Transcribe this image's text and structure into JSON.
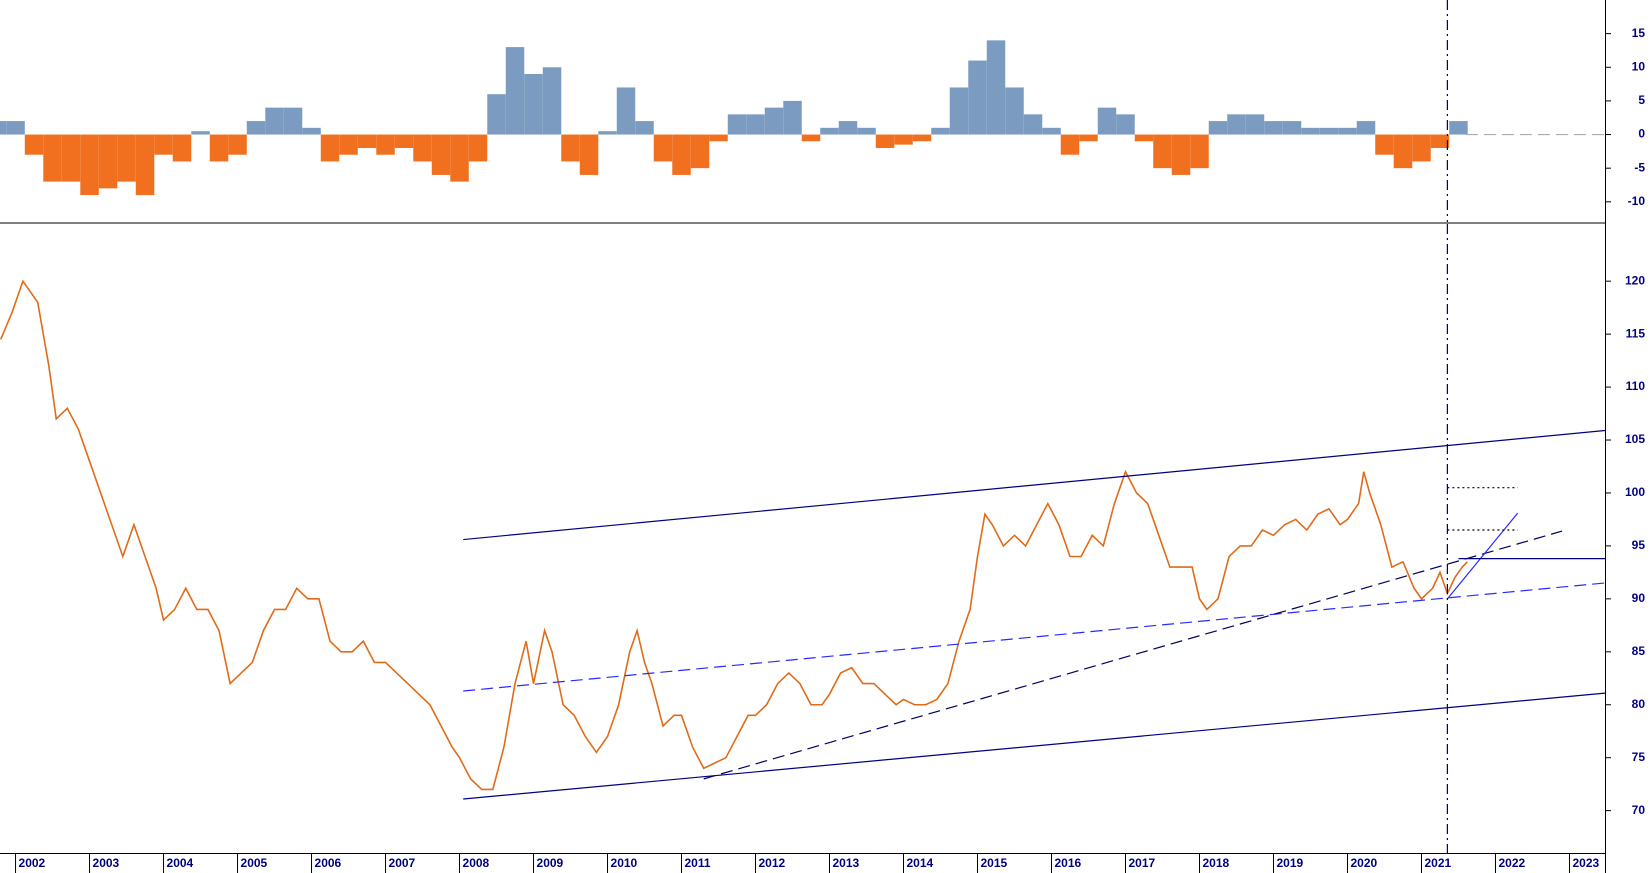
{
  "chart_data": [
    {
      "type": "bar",
      "x": [
        2001.75,
        2002,
        2002.25,
        2002.5,
        2002.75,
        2003,
        2003.25,
        2003.5,
        2003.75,
        2004,
        2004.25,
        2004.5,
        2004.75,
        2005,
        2005.25,
        2005.5,
        2005.75,
        2006,
        2006.25,
        2006.5,
        2006.75,
        2007,
        2007.25,
        2007.5,
        2007.75,
        2008,
        2008.25,
        2008.5,
        2008.75,
        2009,
        2009.25,
        2009.5,
        2009.75,
        2010,
        2010.25,
        2010.5,
        2010.75,
        2011,
        2011.25,
        2011.5,
        2011.75,
        2012,
        2012.25,
        2012.5,
        2012.75,
        2013,
        2013.25,
        2013.5,
        2013.75,
        2014,
        2014.25,
        2014.5,
        2014.75,
        2015,
        2015.25,
        2015.5,
        2015.75,
        2016,
        2016.25,
        2016.5,
        2016.75,
        2017,
        2017.25,
        2017.5,
        2017.75,
        2018,
        2018.25,
        2018.5,
        2018.75,
        2019,
        2019.25,
        2019.5,
        2019.75,
        2020,
        2020.25,
        2020.5,
        2020.75,
        2021,
        2021.25,
        2021.5
      ],
      "values": [
        2,
        2,
        -3,
        -7,
        -7,
        -9,
        -8,
        -7,
        -9,
        -3,
        -4,
        0.5,
        -4,
        -3,
        2,
        4,
        4,
        1,
        -4,
        -3,
        -2,
        -3,
        -2,
        -4,
        -6,
        -7,
        -4,
        6,
        13,
        9,
        10,
        -4,
        -6,
        0.5,
        7,
        2,
        -4,
        -6,
        -5,
        -1,
        3,
        3,
        4,
        5,
        -1,
        1,
        2,
        1,
        -2,
        -1.5,
        -1,
        1,
        7,
        11,
        14,
        7,
        3,
        1,
        -3,
        -1,
        4,
        3,
        -1,
        -5,
        -6,
        -5,
        2,
        3,
        3,
        2,
        2,
        1,
        1,
        1,
        2,
        -3,
        -5,
        -4,
        -2,
        2
      ],
      "positive_color": "#7b9cc0",
      "negative_color": "#f07020",
      "xlim": [
        2001.79,
        2023.48
      ],
      "ylim": [
        20,
        -13
      ],
      "yticks": [
        -10,
        -5,
        0,
        5,
        10,
        15
      ],
      "lines": [
        {
          "points": [
            [
              2021.6,
              0
            ],
            [
              2023.48,
              0
            ]
          ],
          "color": "#aaaaaa",
          "dash": "dashed"
        },
        {
          "points": [
            [
              2021.35,
              20
            ],
            [
              2021.35,
              -13
            ]
          ],
          "color": "#000060",
          "dash": "dashdot"
        }
      ]
    },
    {
      "type": "line",
      "x": [
        2001.8,
        2001.95,
        2002.1,
        2002.3,
        2002.45,
        2002.55,
        2002.7,
        2002.85,
        2003.0,
        2003.15,
        2003.3,
        2003.45,
        2003.6,
        2003.75,
        2003.9,
        2004.0,
        2004.15,
        2004.3,
        2004.45,
        2004.6,
        2004.75,
        2004.9,
        2005.05,
        2005.2,
        2005.35,
        2005.5,
        2005.65,
        2005.8,
        2005.95,
        2006.1,
        2006.25,
        2006.4,
        2006.55,
        2006.7,
        2006.85,
        2007.0,
        2007.15,
        2007.3,
        2007.45,
        2007.6,
        2007.75,
        2007.9,
        2008.0,
        2008.15,
        2008.3,
        2008.45,
        2008.6,
        2008.75,
        2008.9,
        2009.0,
        2009.15,
        2009.25,
        2009.4,
        2009.55,
        2009.7,
        2009.85,
        2010.0,
        2010.15,
        2010.3,
        2010.4,
        2010.5,
        2010.6,
        2010.75,
        2010.9,
        2011.0,
        2011.15,
        2011.3,
        2011.45,
        2011.6,
        2011.75,
        2011.9,
        2012.0,
        2012.15,
        2012.3,
        2012.45,
        2012.6,
        2012.75,
        2012.9,
        2013.0,
        2013.15,
        2013.3,
        2013.45,
        2013.6,
        2013.75,
        2013.9,
        2014.0,
        2014.15,
        2014.3,
        2014.45,
        2014.6,
        2014.75,
        2014.9,
        2015.0,
        2015.1,
        2015.2,
        2015.35,
        2015.5,
        2015.65,
        2015.8,
        2015.95,
        2016.1,
        2016.25,
        2016.4,
        2016.55,
        2016.7,
        2016.85,
        2017.0,
        2017.15,
        2017.3,
        2017.45,
        2017.6,
        2017.75,
        2017.9,
        2018.0,
        2018.1,
        2018.25,
        2018.4,
        2018.55,
        2018.7,
        2018.85,
        2019.0,
        2019.15,
        2019.3,
        2019.45,
        2019.6,
        2019.75,
        2019.9,
        2020.0,
        2020.15,
        2020.22,
        2020.3,
        2020.45,
        2020.6,
        2020.75,
        2020.9,
        2021.0,
        2021.15,
        2021.25,
        2021.35,
        2021.45,
        2021.55,
        2021.62
      ],
      "values": [
        114.5,
        117,
        120,
        118,
        112,
        107,
        108,
        106,
        103,
        100,
        97,
        94,
        97,
        94,
        91,
        88,
        89,
        91,
        89,
        89,
        87,
        82,
        83,
        84,
        87,
        89,
        89,
        91,
        90,
        90,
        86,
        85,
        85,
        86,
        84,
        84,
        83,
        82,
        81,
        80,
        78,
        76,
        75,
        73,
        72,
        72,
        76,
        82,
        86,
        82,
        87,
        85,
        80,
        79,
        77,
        75.5,
        77,
        80,
        85,
        87,
        84,
        82,
        78,
        79,
        79,
        76,
        74,
        74.5,
        75,
        77,
        79,
        79,
        80,
        82,
        83,
        82,
        80,
        80,
        81,
        83,
        83.5,
        82,
        82,
        81,
        80,
        80.5,
        80,
        80,
        80.5,
        82,
        86,
        89,
        94,
        98,
        97,
        95,
        96,
        95,
        97,
        99,
        97,
        94,
        94,
        96,
        95,
        99,
        102,
        100,
        99,
        96,
        93,
        93,
        93,
        90,
        89,
        90,
        94,
        95,
        95,
        96.5,
        96,
        97,
        97.5,
        96.5,
        98,
        98.5,
        97,
        97.5,
        99,
        102,
        100,
        97,
        93,
        93.5,
        91,
        90,
        91,
        92.5,
        90.5,
        92,
        93,
        93.5
      ],
      "color": "#e06b1a",
      "xlim": [
        2001.79,
        2023.48
      ],
      "ylim": [
        125.4,
        66
      ],
      "xticks": [
        2002,
        2003,
        2004,
        2005,
        2006,
        2007,
        2008,
        2009,
        2010,
        2011,
        2012,
        2013,
        2014,
        2015,
        2016,
        2017,
        2018,
        2019,
        2020,
        2021,
        2022,
        2023
      ],
      "yticks": [
        70,
        75,
        80,
        85,
        90,
        95,
        100,
        105,
        110,
        115,
        120
      ],
      "lines": [
        {
          "points": [
            [
              2008.05,
              95.6
            ],
            [
              2023.48,
              105.9
            ]
          ],
          "color": "#000080",
          "dash": "solid"
        },
        {
          "points": [
            [
              2008.05,
              71.1
            ],
            [
              2023.48,
              81.1
            ]
          ],
          "color": "#000080",
          "dash": "solid"
        },
        {
          "points": [
            [
              2008.05,
              81.3
            ],
            [
              2023.48,
              91.5
            ]
          ],
          "color": "#2a2aff",
          "dash": "dashed"
        },
        {
          "points": [
            [
              2011.3,
              73.0
            ],
            [
              2022.9,
              96.4
            ]
          ],
          "color": "#000060",
          "dash": "dashed"
        },
        {
          "points": [
            [
              2021.35,
              90.0
            ],
            [
              2022.3,
              98.1
            ]
          ],
          "color": "#2a2aff",
          "dash": "solid"
        },
        {
          "points": [
            [
              2021.35,
              100.5
            ],
            [
              2022.3,
              100.5
            ]
          ],
          "color": "#000000",
          "dash": "dotted"
        },
        {
          "points": [
            [
              2021.35,
              96.5
            ],
            [
              2022.3,
              96.5
            ]
          ],
          "color": "#000000",
          "dash": "dotted"
        },
        {
          "points": [
            [
              2021.5,
              93.8
            ],
            [
              2023.48,
              93.8
            ]
          ],
          "color": "#000080",
          "dash": "solid"
        },
        {
          "points": [
            [
              2021.35,
              125.4
            ],
            [
              2021.35,
              66
            ]
          ],
          "color": "#000060",
          "dash": "dashdot"
        }
      ]
    }
  ]
}
